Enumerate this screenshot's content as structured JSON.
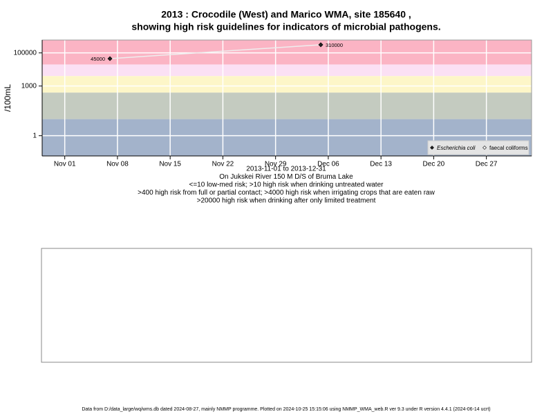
{
  "chart_data": {
    "type": "line",
    "title": [
      "2013 : Crocodile (West) and Marico WMA, site 185640 ,",
      "showing high risk guidelines for indicators of microbial pathogens."
    ],
    "y_label": "/100mL",
    "x_label": [
      "2013-11-01 to 2013-12-31",
      "On Jukskei River 150 M D/S of Bruma Lake",
      "<=10 low-med risk; >10 high risk when drinking untreated water",
      ">400 high risk from full or partial contact; >4000 high risk when irrigating crops that are eaten raw",
      ">20000 high risk when drinking after only limited treatment"
    ],
    "log_y": true,
    "grid": true,
    "xlim": [
      "2013-10-29",
      "2014-01-02"
    ],
    "ylim": [
      0.06,
      600000
    ],
    "xticks": [
      {
        "value": "2013-11-01",
        "label": "Nov 01"
      },
      {
        "value": "2013-11-08",
        "label": "Nov 08"
      },
      {
        "value": "2013-11-15",
        "label": "Nov 15"
      },
      {
        "value": "2013-11-22",
        "label": "Nov 22"
      },
      {
        "value": "2013-11-29",
        "label": "Nov 29"
      },
      {
        "value": "2013-12-06",
        "label": "Dec 06"
      },
      {
        "value": "2013-12-13",
        "label": "Dec 13"
      },
      {
        "value": "2013-12-20",
        "label": "Dec 20"
      },
      {
        "value": "2013-12-27",
        "label": "Dec 27"
      }
    ],
    "yticks": [
      1,
      1000,
      100000
    ],
    "bands": [
      {
        "from": 20000,
        "color": "#fbb4c4"
      },
      {
        "from": 4000,
        "color": "#fbe0f4"
      },
      {
        "from": 400,
        "color": "#fdf6c8"
      },
      {
        "from": 10,
        "color": "#c4cbc0"
      },
      {
        "from": 0.06,
        "color": "#a3b3cb"
      }
    ],
    "legend": "bottom-right",
    "series": [
      {
        "name": "Escherichia coli",
        "color": "#222222",
        "line_color": "#eeeeee",
        "x": [
          "2013-11-07",
          "2013-12-05"
        ],
        "values": [
          45000,
          310000
        ]
      },
      {
        "name": "faecal coliforms",
        "color": "#ffffff",
        "line_color": "#eeeeee",
        "x": [],
        "values": []
      }
    ],
    "footer": "Data from D:/data_large/wq/wms.db dated 2024-08-27, mainly NMMP programme. Plotted on 2024-10-25 15:15:06 using NMMP_WMA_web.R ver 9.3 under R version 4.4.1 (2024-06-14 ucrt)"
  }
}
